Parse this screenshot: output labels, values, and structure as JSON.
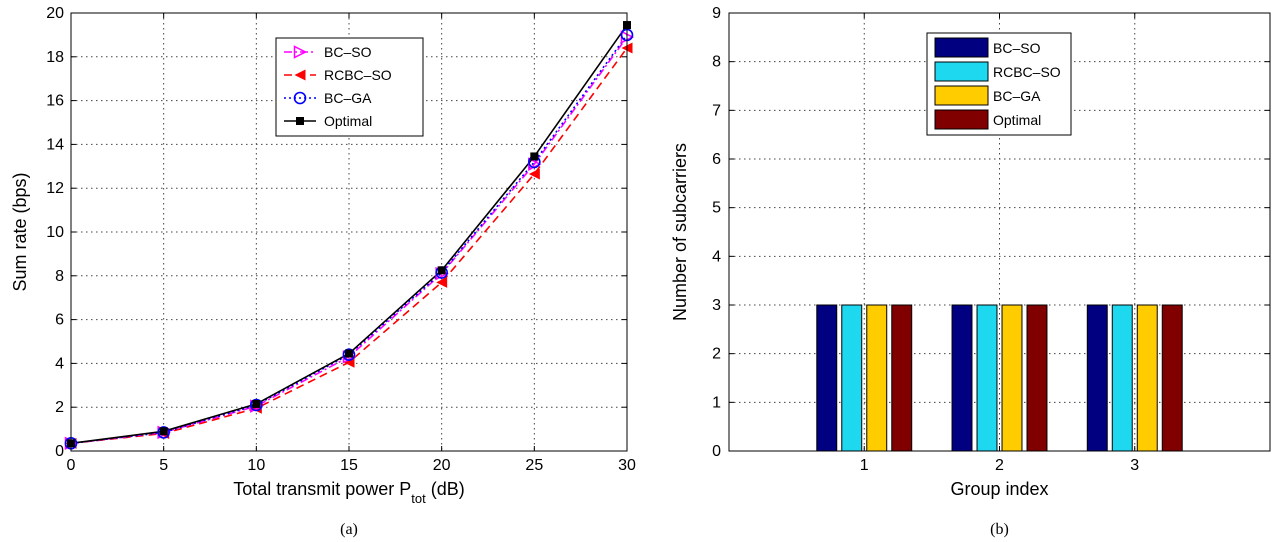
{
  "chart_data": [
    {
      "type": "line",
      "caption": "(a)",
      "xlabel": "Total transmit power P",
      "xlabel_sub": "tot",
      "xlabel_unit": " (dB)",
      "ylabel": "Sum rate (bps)",
      "xlim": [
        0,
        30
      ],
      "ylim": [
        0,
        20
      ],
      "xticks": [
        0,
        5,
        10,
        15,
        20,
        25,
        30
      ],
      "yticks": [
        0,
        2,
        4,
        6,
        8,
        10,
        12,
        14,
        16,
        18,
        20
      ],
      "grid": true,
      "legend_position": "top-center",
      "x": [
        0,
        5,
        10,
        15,
        20,
        25,
        30
      ],
      "series": [
        {
          "name": "BC–SO",
          "color": "#ff00ff",
          "marker": "triangle-right",
          "line": "dash-dot",
          "values": [
            0.35,
            0.85,
            2.05,
            4.3,
            8.1,
            13.1,
            18.9
          ]
        },
        {
          "name": "RCBC–SO",
          "color": "#ff0000",
          "marker": "triangle-left",
          "line": "dashed",
          "values": [
            0.35,
            0.8,
            1.95,
            4.05,
            7.7,
            12.65,
            18.4
          ]
        },
        {
          "name": "BC–GA",
          "color": "#0000ff",
          "marker": "circle",
          "line": "dotted",
          "values": [
            0.35,
            0.85,
            2.1,
            4.4,
            8.15,
            13.2,
            19.0
          ]
        },
        {
          "name": "Optimal",
          "color": "#000000",
          "marker": "square",
          "line": "solid",
          "values": [
            0.35,
            0.9,
            2.15,
            4.45,
            8.25,
            13.45,
            19.45
          ]
        }
      ]
    },
    {
      "type": "bar",
      "caption": "(b)",
      "xlabel": "Group index",
      "ylabel": "Number of subcarriers",
      "xlim": [
        0,
        4
      ],
      "ylim": [
        0,
        9
      ],
      "categories": [
        "1",
        "2",
        "3"
      ],
      "yticks": [
        0,
        1,
        2,
        3,
        4,
        5,
        6,
        7,
        8,
        9
      ],
      "grid": true,
      "legend_position": "top-center",
      "series": [
        {
          "name": "BC–SO",
          "color": "#000080",
          "values": [
            3,
            3,
            3
          ]
        },
        {
          "name": "RCBC–SO",
          "color": "#1ed8f0",
          "values": [
            3,
            3,
            3
          ]
        },
        {
          "name": "BC–GA",
          "color": "#ffcc00",
          "values": [
            3,
            3,
            3
          ]
        },
        {
          "name": "Optimal",
          "color": "#800000",
          "values": [
            3,
            3,
            3
          ]
        }
      ]
    }
  ]
}
